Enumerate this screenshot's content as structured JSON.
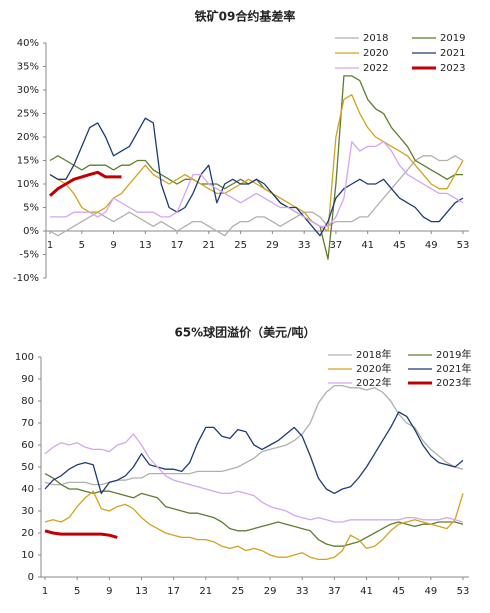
{
  "chart_data": [
    {
      "type": "line",
      "title": "铁矿09合约基差率",
      "x": [
        1,
        2,
        3,
        4,
        5,
        6,
        7,
        8,
        9,
        10,
        11,
        12,
        13,
        14,
        15,
        16,
        17,
        18,
        19,
        20,
        21,
        22,
        23,
        24,
        25,
        26,
        27,
        28,
        29,
        30,
        31,
        32,
        33,
        34,
        35,
        36,
        37,
        38,
        39,
        40,
        41,
        42,
        43,
        44,
        45,
        46,
        47,
        48,
        49,
        50,
        51,
        52,
        53
      ],
      "xlim": [
        1,
        53
      ],
      "xticks": [
        1,
        5,
        9,
        13,
        17,
        21,
        25,
        29,
        33,
        37,
        41,
        45,
        49,
        53
      ],
      "ylim": [
        -10,
        40
      ],
      "yticks": [
        {
          "value": -10,
          "label": "-10%"
        },
        {
          "value": -5,
          "label": "-5%"
        },
        {
          "value": 0,
          "label": "0%"
        },
        {
          "value": 5,
          "label": "5%"
        },
        {
          "value": 10,
          "label": "10%"
        },
        {
          "value": 15,
          "label": "15%"
        },
        {
          "value": 20,
          "label": "20%"
        },
        {
          "value": 25,
          "label": "25%"
        },
        {
          "value": 30,
          "label": "30%"
        },
        {
          "value": 35,
          "label": "35%"
        },
        {
          "value": 40,
          "label": "40%"
        }
      ],
      "legend": "upper right",
      "series": [
        {
          "name": "2018",
          "color": "#b0b0b0",
          "values": [
            0,
            -1,
            0,
            1,
            2,
            3,
            4,
            3,
            2,
            3,
            4,
            3,
            2,
            1,
            2,
            1,
            0,
            1,
            2,
            2,
            1,
            0,
            -1,
            1,
            2,
            2,
            3,
            3,
            2,
            1,
            2,
            3,
            4,
            4,
            3,
            1,
            2,
            2,
            2,
            3,
            3,
            5,
            7,
            9,
            11,
            13,
            15,
            16,
            16,
            15,
            15,
            16,
            15
          ]
        },
        {
          "name": "2019",
          "color": "#5e7d2e",
          "values": [
            15,
            16,
            15,
            14,
            13,
            14,
            14,
            14,
            13,
            14,
            14,
            15,
            15,
            13,
            12,
            11,
            10,
            11,
            11,
            10,
            10,
            10,
            9,
            10,
            11,
            10,
            11,
            9,
            8,
            6,
            5,
            4,
            3,
            2,
            1,
            -6,
            10,
            33,
            33,
            32,
            28,
            26,
            25,
            22,
            20,
            18,
            15,
            14,
            13,
            12,
            11,
            12,
            12
          ]
        },
        {
          "name": "2020",
          "color": "#d4a21e",
          "values": [
            12,
            11,
            10,
            8,
            5,
            4,
            4,
            5,
            7,
            8,
            10,
            12,
            14,
            12,
            11,
            10,
            11,
            12,
            11,
            10,
            9,
            8,
            8,
            9,
            10,
            11,
            10,
            9,
            8,
            7,
            6,
            5,
            4,
            2,
            1,
            0,
            20,
            28,
            29,
            25,
            22,
            20,
            19,
            18,
            17,
            16,
            14,
            12,
            10,
            9,
            9,
            12,
            15
          ]
        },
        {
          "name": "2021",
          "color": "#1f3a78",
          "values": [
            12,
            11,
            11,
            14,
            18,
            22,
            23,
            20,
            16,
            17,
            18,
            21,
            24,
            23,
            10,
            5,
            4,
            5,
            8,
            12,
            14,
            6,
            10,
            11,
            10,
            10,
            11,
            10,
            8,
            6,
            5,
            5,
            3,
            1,
            -1,
            2,
            7,
            9,
            10,
            11,
            10,
            10,
            11,
            9,
            7,
            6,
            5,
            3,
            2,
            2,
            4,
            6,
            7
          ]
        },
        {
          "name": "2022",
          "color": "#d4a6f2",
          "values": [
            3,
            3,
            3,
            4,
            4,
            4,
            3,
            4,
            7,
            6,
            5,
            4,
            4,
            4,
            3,
            3,
            4,
            8,
            12,
            12,
            10,
            9,
            8,
            7,
            6,
            7,
            8,
            7,
            6,
            5,
            5,
            4,
            3,
            2,
            1,
            1,
            3,
            7,
            19,
            17,
            18,
            18,
            19,
            17,
            14,
            12,
            11,
            10,
            9,
            8,
            8,
            7,
            6
          ]
        },
        {
          "name": "2023",
          "color": "#c00000",
          "values": [
            7.5,
            9,
            10,
            11,
            11.5,
            12,
            12.5,
            11.5,
            11.5,
            11.5,
            null,
            null,
            null,
            null,
            null,
            null,
            null,
            null,
            null,
            null,
            null,
            null,
            null,
            null,
            null,
            null,
            null,
            null,
            null,
            null,
            null,
            null,
            null,
            null,
            null,
            null,
            null,
            null,
            null,
            null,
            null,
            null,
            null,
            null,
            null,
            null,
            null,
            null,
            null,
            null,
            null,
            null,
            null
          ]
        }
      ]
    },
    {
      "type": "line",
      "title": "65%球团溢价（美元/吨）",
      "x": [
        1,
        2,
        3,
        4,
        5,
        6,
        7,
        8,
        9,
        10,
        11,
        12,
        13,
        14,
        15,
        16,
        17,
        18,
        19,
        20,
        21,
        22,
        23,
        24,
        25,
        26,
        27,
        28,
        29,
        30,
        31,
        32,
        33,
        34,
        35,
        36,
        37,
        38,
        39,
        40,
        41,
        42,
        43,
        44,
        45,
        46,
        47,
        48,
        49,
        50,
        51,
        52,
        53
      ],
      "xlim": [
        1,
        53
      ],
      "xticks": [
        1,
        5,
        9,
        13,
        17,
        21,
        25,
        29,
        33,
        37,
        41,
        45,
        49,
        53
      ],
      "ylim": [
        0,
        100
      ],
      "yticks": [
        0,
        10,
        20,
        30,
        40,
        50,
        60,
        70,
        80,
        90,
        100
      ],
      "legend": "upper right",
      "series": [
        {
          "name": "2018年",
          "color": "#b0b0b0",
          "values": [
            43,
            42,
            42,
            43,
            43,
            43,
            42,
            42,
            43,
            44,
            44,
            45,
            45,
            47,
            47,
            47,
            47,
            47,
            47,
            48,
            48,
            48,
            48,
            49,
            50,
            52,
            54,
            57,
            58,
            59,
            60,
            62,
            65,
            70,
            79,
            84,
            87,
            87,
            86,
            86,
            85,
            86,
            84,
            80,
            74,
            70,
            68,
            62,
            58,
            55,
            52,
            50,
            49
          ]
        },
        {
          "name": "2019年",
          "color": "#5e7d2e",
          "values": [
            47,
            45,
            42,
            40,
            40,
            39,
            38,
            39,
            39,
            38,
            37,
            36,
            38,
            37,
            36,
            32,
            31,
            30,
            29,
            29,
            28,
            27,
            25,
            22,
            21,
            21,
            22,
            23,
            24,
            25,
            24,
            23,
            22,
            21,
            17,
            15,
            14,
            14,
            15,
            16,
            18,
            20,
            22,
            24,
            25,
            24,
            23,
            24,
            24,
            25,
            25,
            25,
            24
          ]
        },
        {
          "name": "2020年",
          "color": "#d4a21e",
          "values": [
            25,
            26,
            25,
            27,
            32,
            36,
            39,
            31,
            30,
            32,
            33,
            31,
            27,
            24,
            22,
            20,
            19,
            18,
            18,
            17,
            17,
            16,
            14,
            13,
            14,
            12,
            13,
            12,
            10,
            9,
            9,
            10,
            11,
            9,
            8,
            8,
            9,
            12,
            19,
            17,
            13,
            14,
            17,
            21,
            24,
            25,
            26,
            25,
            24,
            23,
            22,
            26,
            38
          ]
        },
        {
          "name": "2021年",
          "color": "#1f3a78",
          "values": [
            40,
            44,
            46,
            49,
            51,
            52,
            51,
            38,
            43,
            44,
            46,
            50,
            56,
            51,
            50,
            49,
            49,
            48,
            52,
            61,
            68,
            68,
            64,
            63,
            67,
            66,
            60,
            58,
            60,
            62,
            65,
            68,
            64,
            55,
            45,
            40,
            38,
            40,
            41,
            45,
            50,
            56,
            62,
            68,
            75,
            73,
            67,
            60,
            55,
            52,
            51,
            50,
            53
          ]
        },
        {
          "name": "2022年",
          "color": "#d4a6f2",
          "values": [
            56,
            59,
            61,
            60,
            61,
            59,
            58,
            58,
            57,
            60,
            61,
            65,
            60,
            54,
            50,
            46,
            44,
            43,
            42,
            41,
            40,
            39,
            38,
            38,
            39,
            38,
            37,
            34,
            32,
            31,
            30,
            28,
            27,
            26,
            27,
            26,
            25,
            25,
            26,
            26,
            26,
            26,
            26,
            26,
            26,
            27,
            27,
            26,
            26,
            26,
            27,
            26,
            25
          ]
        },
        {
          "name": "2023年",
          "color": "#c00000",
          "values": [
            21,
            20,
            19.5,
            19.5,
            19.5,
            19.5,
            19.5,
            19.5,
            19,
            18,
            null,
            null,
            null,
            null,
            null,
            null,
            null,
            null,
            null,
            null,
            null,
            null,
            null,
            null,
            null,
            null,
            null,
            null,
            null,
            null,
            null,
            null,
            null,
            null,
            null,
            null,
            null,
            null,
            null,
            null,
            null,
            null,
            null,
            null,
            null,
            null,
            null,
            null,
            null,
            null,
            null,
            null,
            null
          ]
        }
      ]
    }
  ]
}
